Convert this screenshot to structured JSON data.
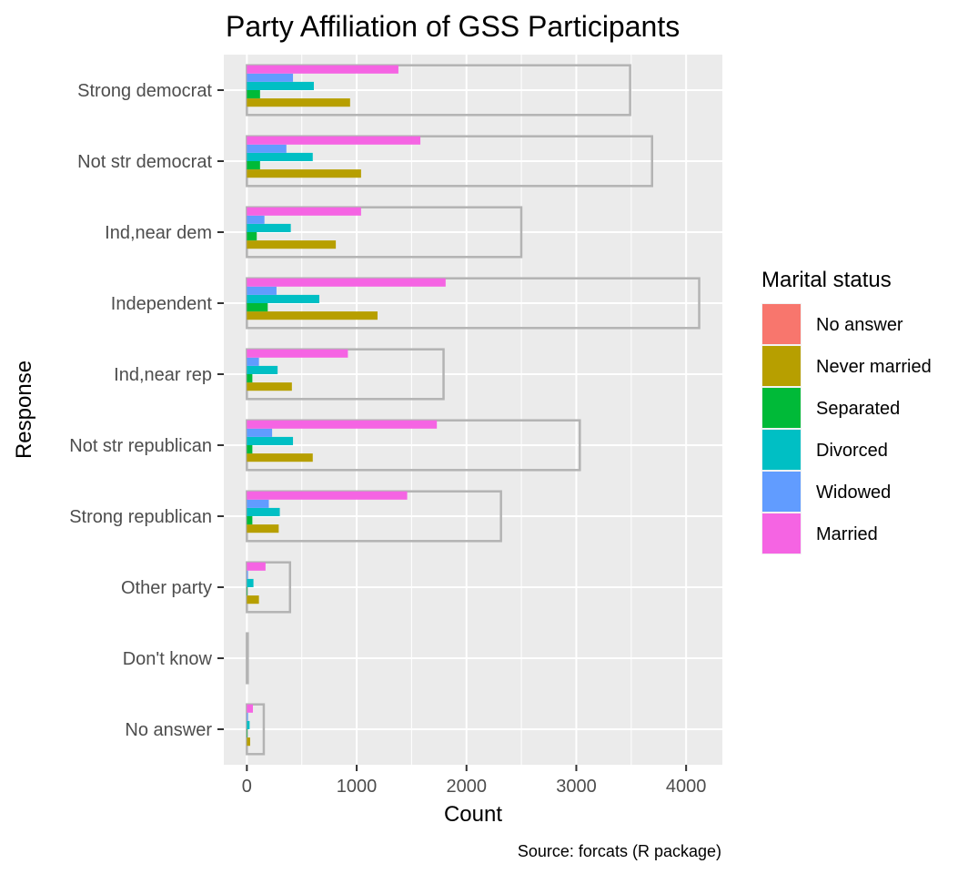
{
  "chart_data": {
    "type": "bar",
    "orientation": "horizontal",
    "title": "Party Affiliation of GSS Participants",
    "xlabel": "Count",
    "ylabel": "Response",
    "caption": "Source: forcats (R package)",
    "xlim": [
      -210,
      4330
    ],
    "x_ticks": [
      0,
      1000,
      2000,
      3000,
      4000
    ],
    "categories": [
      "No answer",
      "Don't know",
      "Other party",
      "Strong republican",
      "Not str republican",
      "Ind,near rep",
      "Independent",
      "Ind,near dem",
      "Not str democrat",
      "Strong democrat"
    ],
    "totals": [
      154,
      1,
      393,
      2314,
      3032,
      1791,
      4119,
      2499,
      3690,
      3490
    ],
    "series": [
      {
        "name": "No answer",
        "color": "#F8766D",
        "values": [
          0,
          0,
          0,
          0,
          0,
          0,
          0,
          0,
          0,
          0
        ]
      },
      {
        "name": "Never married",
        "color": "#B79F00",
        "values": [
          30,
          0,
          110,
          290,
          600,
          410,
          1190,
          810,
          1040,
          940
        ]
      },
      {
        "name": "Separated",
        "color": "#00BA38",
        "values": [
          5,
          0,
          5,
          50,
          50,
          50,
          190,
          90,
          120,
          120
        ]
      },
      {
        "name": "Divorced",
        "color": "#00BFC4",
        "values": [
          25,
          0,
          60,
          300,
          420,
          280,
          660,
          400,
          600,
          610
        ]
      },
      {
        "name": "Widowed",
        "color": "#619CFF",
        "values": [
          10,
          0,
          10,
          200,
          230,
          110,
          270,
          160,
          360,
          420
        ]
      },
      {
        "name": "Married",
        "color": "#F564E3",
        "values": [
          55,
          0,
          170,
          1460,
          1730,
          920,
          1810,
          1040,
          1580,
          1380
        ]
      }
    ],
    "legend": {
      "title": "Marital status",
      "position": "right"
    },
    "grid": true,
    "panel_background": "#EBEBEB",
    "total_outline_color": "#B3B3B3"
  }
}
